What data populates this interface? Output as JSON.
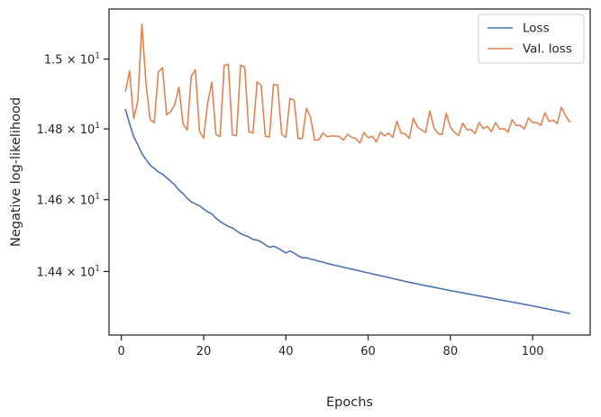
{
  "chart_data": {
    "type": "line",
    "title": "",
    "xlabel": "Epochs",
    "ylabel": "Negative log-likelihood",
    "xlim": [
      -3,
      114
    ],
    "ylim": [
      14.225,
      15.145
    ],
    "yscale": "log",
    "grid": false,
    "legend_position": "top-right",
    "x_ticks": [
      {
        "value": 0,
        "label": "0"
      },
      {
        "value": 20,
        "label": "20"
      },
      {
        "value": 40,
        "label": "40"
      },
      {
        "value": 60,
        "label": "60"
      },
      {
        "value": 80,
        "label": "80"
      },
      {
        "value": 100,
        "label": "100"
      }
    ],
    "y_ticks": [
      {
        "value": 14.4,
        "mantissa": "1.44",
        "times": " × ",
        "base": "10",
        "exp": "1"
      },
      {
        "value": 14.6,
        "mantissa": "1.46",
        "times": " × ",
        "base": "10",
        "exp": "1"
      },
      {
        "value": 14.8,
        "mantissa": "1.48",
        "times": " × ",
        "base": "10",
        "exp": "1"
      },
      {
        "value": 15.0,
        "mantissa": "1.5",
        "times": " × ",
        "base": "10",
        "exp": "1"
      }
    ],
    "series": [
      {
        "name": "Loss",
        "color": "#4c72b0",
        "anchors": [
          [
            1,
            14.855
          ],
          [
            2,
            14.815
          ],
          [
            3,
            14.778
          ],
          [
            4,
            14.755
          ],
          [
            5,
            14.73
          ],
          [
            6,
            14.713
          ],
          [
            7,
            14.697
          ],
          [
            8,
            14.688
          ],
          [
            9,
            14.678
          ],
          [
            10,
            14.672
          ],
          [
            11,
            14.662
          ],
          [
            12,
            14.652
          ],
          [
            13,
            14.641
          ],
          [
            14,
            14.627
          ],
          [
            15,
            14.617
          ],
          [
            16,
            14.604
          ],
          [
            17,
            14.594
          ],
          [
            18,
            14.588
          ],
          [
            19,
            14.583
          ],
          [
            20,
            14.574
          ],
          [
            21,
            14.566
          ],
          [
            22,
            14.56
          ],
          [
            23,
            14.548
          ],
          [
            24,
            14.539
          ],
          [
            25,
            14.532
          ],
          [
            26,
            14.525
          ],
          [
            27,
            14.521
          ],
          [
            28,
            14.513
          ],
          [
            29,
            14.505
          ],
          [
            30,
            14.5
          ],
          [
            31,
            14.496
          ],
          [
            32,
            14.489
          ],
          [
            33,
            14.487
          ],
          [
            34,
            14.482
          ],
          [
            35,
            14.474
          ],
          [
            36,
            14.467
          ],
          [
            37,
            14.47
          ],
          [
            38,
            14.465
          ],
          [
            39,
            14.458
          ],
          [
            40,
            14.451
          ],
          [
            41,
            14.457
          ],
          [
            42,
            14.451
          ],
          [
            43,
            14.443
          ],
          [
            44,
            14.438
          ],
          [
            45,
            14.438
          ],
          [
            46,
            14.434
          ],
          [
            47,
            14.432
          ],
          [
            48,
            14.428
          ],
          [
            49,
            14.426
          ],
          [
            50,
            14.422
          ],
          [
            60,
            14.396
          ],
          [
            70,
            14.37
          ],
          [
            80,
            14.347
          ],
          [
            90,
            14.326
          ],
          [
            100,
            14.305
          ],
          [
            109,
            14.284
          ]
        ]
      },
      {
        "name": "Val. loss",
        "color": "#dd8452",
        "values": [
          [
            1,
            14.907
          ],
          [
            2,
            14.966
          ],
          [
            3,
            14.829
          ],
          [
            4,
            14.879
          ],
          [
            5,
            15.101
          ],
          [
            6,
            14.926
          ],
          [
            7,
            14.826
          ],
          [
            8,
            14.818
          ],
          [
            9,
            14.963
          ],
          [
            10,
            14.975
          ],
          [
            11,
            14.84
          ],
          [
            12,
            14.849
          ],
          [
            13,
            14.87
          ],
          [
            14,
            14.919
          ],
          [
            15,
            14.814
          ],
          [
            16,
            14.797
          ],
          [
            17,
            14.95
          ],
          [
            18,
            14.969
          ],
          [
            19,
            14.793
          ],
          [
            20,
            14.774
          ],
          [
            21,
            14.875
          ],
          [
            22,
            14.933
          ],
          [
            23,
            14.784
          ],
          [
            24,
            14.778
          ],
          [
            25,
            14.982
          ],
          [
            26,
            14.985
          ],
          [
            27,
            14.783
          ],
          [
            28,
            14.781
          ],
          [
            29,
            14.983
          ],
          [
            30,
            14.976
          ],
          [
            31,
            14.792
          ],
          [
            32,
            14.788
          ],
          [
            33,
            14.935
          ],
          [
            34,
            14.924
          ],
          [
            35,
            14.779
          ],
          [
            36,
            14.777
          ],
          [
            37,
            14.927
          ],
          [
            38,
            14.925
          ],
          [
            39,
            14.784
          ],
          [
            40,
            14.776
          ],
          [
            41,
            14.887
          ],
          [
            42,
            14.882
          ],
          [
            43,
            14.772
          ],
          [
            44,
            14.773
          ],
          [
            45,
            14.859
          ],
          [
            46,
            14.833
          ],
          [
            47,
            14.768
          ],
          [
            48,
            14.769
          ],
          [
            49,
            14.788
          ],
          [
            50,
            14.778
          ],
          [
            51,
            14.78
          ],
          [
            52,
            14.78
          ],
          [
            53,
            14.778
          ],
          [
            54,
            14.768
          ],
          [
            55,
            14.785
          ],
          [
            56,
            14.776
          ],
          [
            57,
            14.772
          ],
          [
            58,
            14.76
          ],
          [
            59,
            14.79
          ],
          [
            60,
            14.775
          ],
          [
            61,
            14.779
          ],
          [
            62,
            14.763
          ],
          [
            63,
            14.791
          ],
          [
            64,
            14.78
          ],
          [
            65,
            14.788
          ],
          [
            66,
            14.776
          ],
          [
            67,
            14.822
          ],
          [
            68,
            14.788
          ],
          [
            69,
            14.786
          ],
          [
            70,
            14.773
          ],
          [
            71,
            14.83
          ],
          [
            72,
            14.805
          ],
          [
            73,
            14.797
          ],
          [
            74,
            14.79
          ],
          [
            75,
            14.851
          ],
          [
            76,
            14.803
          ],
          [
            77,
            14.787
          ],
          [
            78,
            14.784
          ],
          [
            79,
            14.844
          ],
          [
            80,
            14.805
          ],
          [
            81,
            14.79
          ],
          [
            82,
            14.781
          ],
          [
            83,
            14.816
          ],
          [
            84,
            14.798
          ],
          [
            85,
            14.798
          ],
          [
            86,
            14.787
          ],
          [
            87,
            14.818
          ],
          [
            88,
            14.801
          ],
          [
            89,
            14.807
          ],
          [
            90,
            14.792
          ],
          [
            91,
            14.818
          ],
          [
            92,
            14.799
          ],
          [
            93,
            14.801
          ],
          [
            94,
            14.791
          ],
          [
            95,
            14.826
          ],
          [
            96,
            14.81
          ],
          [
            97,
            14.81
          ],
          [
            98,
            14.8
          ],
          [
            99,
            14.831
          ],
          [
            100,
            14.818
          ],
          [
            101,
            14.818
          ],
          [
            102,
            14.81
          ],
          [
            103,
            14.846
          ],
          [
            104,
            14.821
          ],
          [
            105,
            14.825
          ],
          [
            106,
            14.815
          ],
          [
            107,
            14.862
          ],
          [
            108,
            14.838
          ],
          [
            109,
            14.82
          ]
        ]
      }
    ]
  }
}
